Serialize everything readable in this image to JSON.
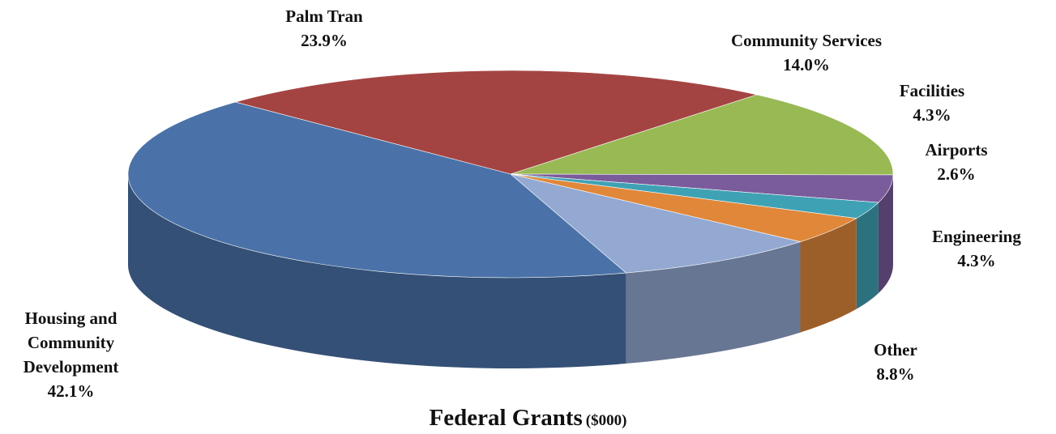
{
  "chart_data": {
    "type": "pie",
    "title": "Federal Grants",
    "subtitle": "($000)",
    "categories": [
      "Palm Tran",
      "Community Services",
      "Facilities",
      "Airports",
      "Engineering",
      "Other",
      "Housing and Community Development"
    ],
    "values": [
      23.9,
      14.0,
      4.3,
      2.6,
      4.3,
      8.8,
      42.1
    ],
    "value_labels": [
      "23.9%",
      "14.0%",
      "4.3%",
      "2.6%",
      "4.3%",
      "8.8%",
      "42.1%"
    ],
    "colors": [
      "#a44442",
      "#98b954",
      "#7a5c9c",
      "#3fa2b4",
      "#e0873a",
      "#93a9d2",
      "#4a72a8"
    ]
  }
}
